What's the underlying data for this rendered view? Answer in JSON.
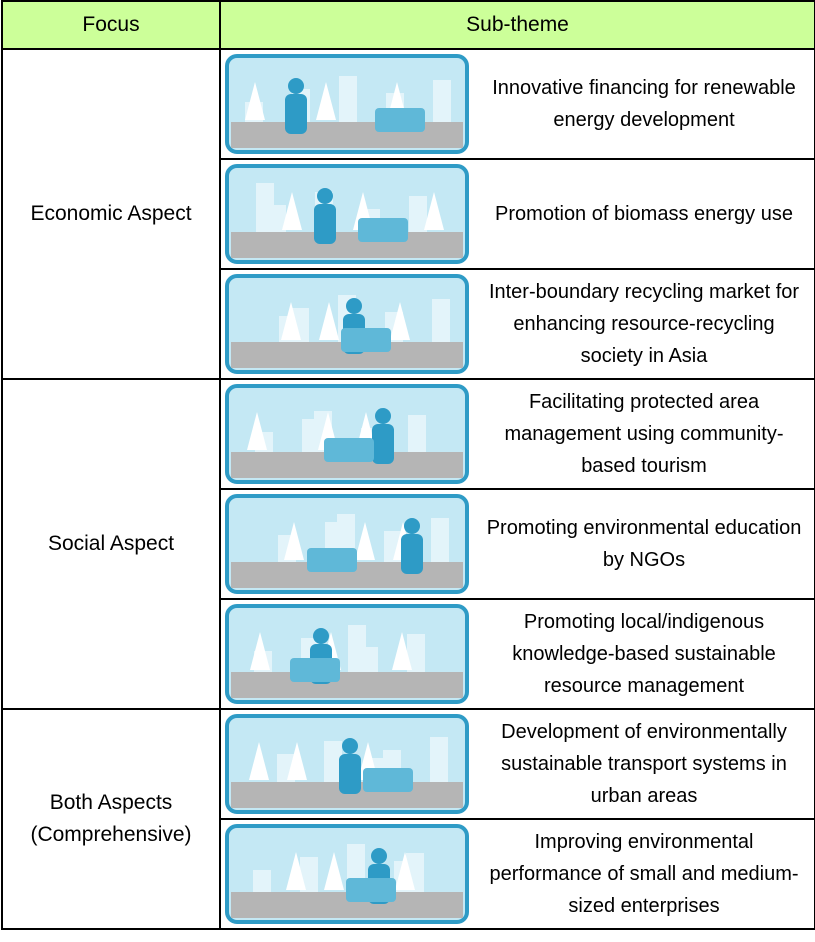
{
  "header": {
    "focus": "Focus",
    "sub_theme": "Sub-theme"
  },
  "groups": [
    {
      "focus": "Economic Aspect",
      "items": [
        "Innovative financing for renewable energy development",
        "Promotion of biomass energy use",
        "Inter-boundary recycling market for enhancing resource-recycling society in Asia"
      ]
    },
    {
      "focus": "Social Aspect",
      "items": [
        "Facilitating protected area management using community-based tourism",
        "Promoting environmental education by NGOs",
        "Promoting local/indigenous knowledge-based sustainable resource management"
      ]
    },
    {
      "focus": "Both Aspects (Comprehensive)",
      "items": [
        "Development of environmentally sustainable transport systems in urban areas",
        "Improving environmental performance of small and medium-sized enterprises"
      ]
    }
  ]
}
